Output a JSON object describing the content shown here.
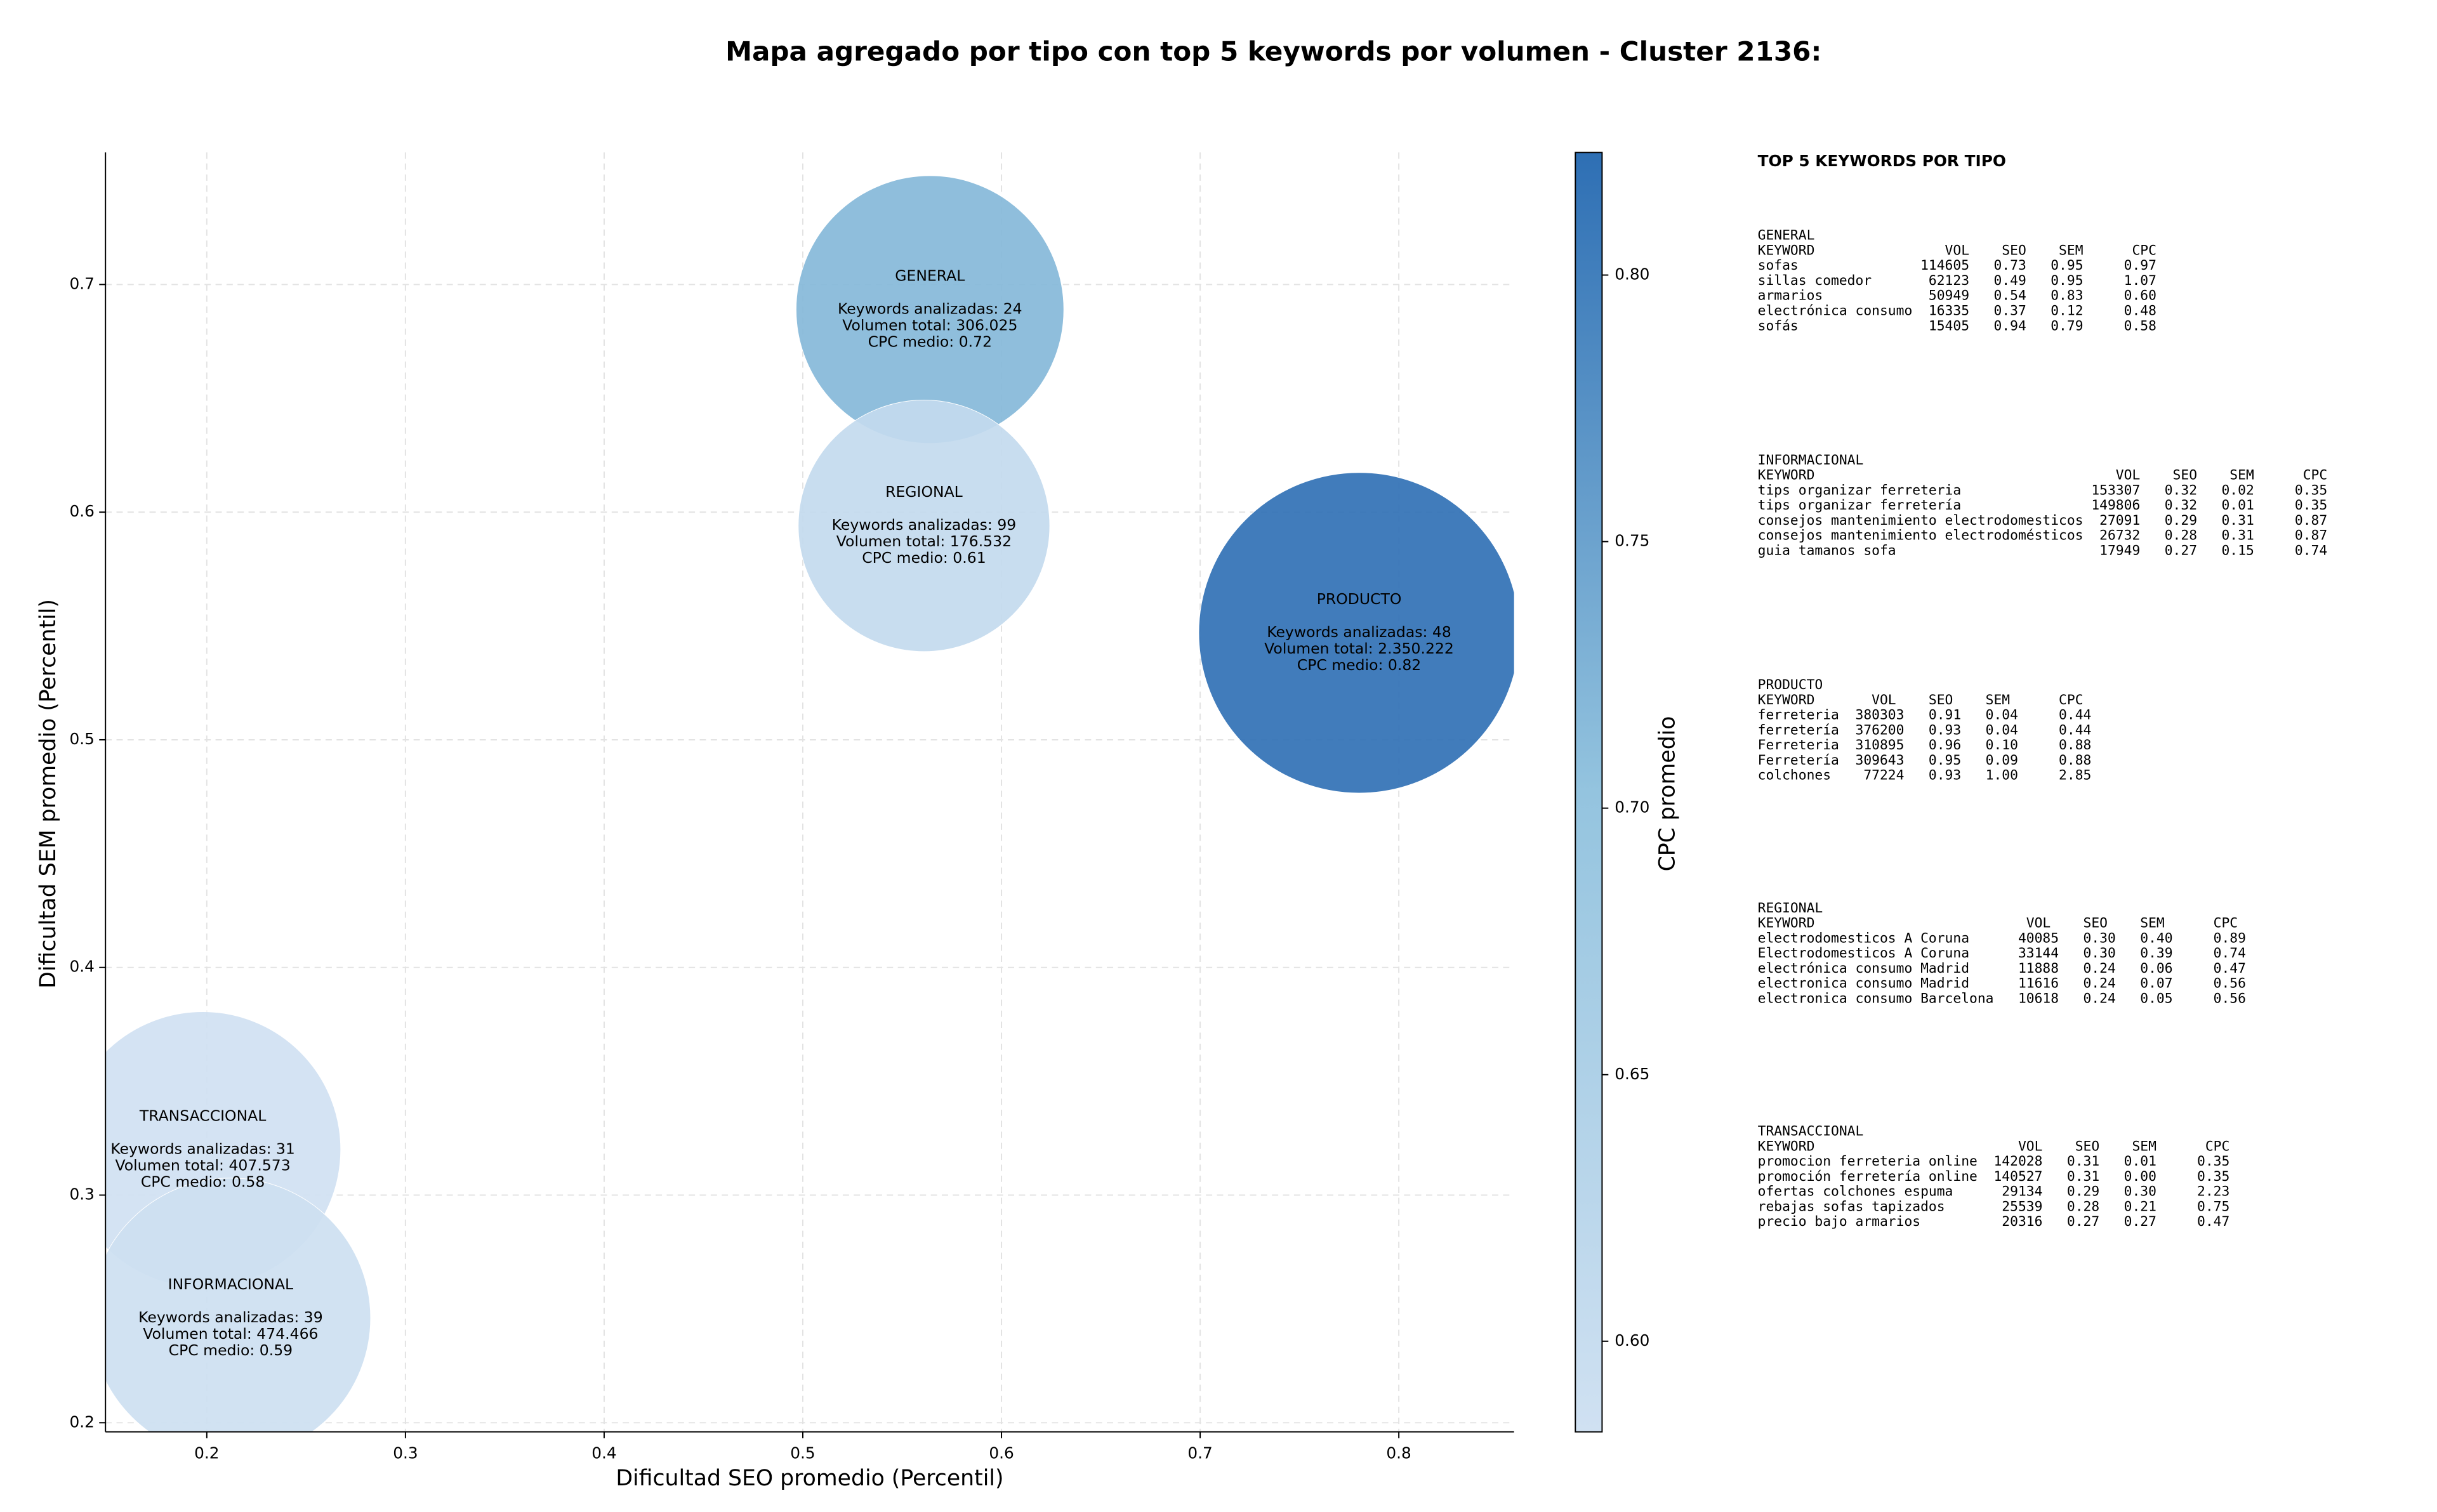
{
  "chart_data": {
    "type": "bubble",
    "title": "Mapa agregado por tipo con top 5 keywords por volumen - Cluster 2136:",
    "x_label": "Dificultad SEO promedio (Percentil)",
    "y_label": "Dificultad SEM promedio (Percentil)",
    "colorbar_label": "CPC promedio",
    "xlim": [
      0.149,
      0.858
    ],
    "ylim": [
      0.196,
      0.758
    ],
    "xticks": [
      0.2,
      0.3,
      0.4,
      0.5,
      0.6,
      0.7,
      0.8
    ],
    "yticks": [
      0.2,
      0.3,
      0.4,
      0.5,
      0.6,
      0.7
    ],
    "clim": [
      0.583,
      0.823
    ],
    "cticks": [
      {
        "value": 0.6,
        "label": "0.60"
      },
      {
        "value": 0.65,
        "label": "0.65"
      },
      {
        "value": 0.7,
        "label": "0.70"
      },
      {
        "value": 0.75,
        "label": "0.75"
      },
      {
        "value": 0.8,
        "label": "0.80"
      }
    ],
    "colormap": [
      "#d0e1f2",
      "#94c4df",
      "#2e6fb4"
    ],
    "grid": true,
    "points": [
      {
        "name": "GENERAL",
        "x": 0.564,
        "y": 0.689,
        "size": 306025,
        "cpc": 0.72,
        "annotation": [
          "Keywords analizadas: 24",
          "Volumen total: 306.025",
          "CPC medio: 0.72"
        ]
      },
      {
        "name": "REGIONAL",
        "x": 0.561,
        "y": 0.594,
        "size": 176532,
        "cpc": 0.61,
        "annotation": [
          "Keywords analizadas: 99",
          "Volumen total: 176.532",
          "CPC medio: 0.61"
        ]
      },
      {
        "name": "PRODUCTO",
        "x": 0.78,
        "y": 0.547,
        "size": 2350222,
        "cpc": 0.82,
        "annotation": [
          "Keywords analizadas: 48",
          "Volumen total: 2.350.222",
          "CPC medio: 0.82"
        ]
      },
      {
        "name": "TRANSACCIONAL",
        "x": 0.198,
        "y": 0.32,
        "size": 407573,
        "cpc": 0.58,
        "annotation": [
          "Keywords analizadas: 31",
          "Volumen total: 407.573",
          "CPC medio: 0.58"
        ]
      },
      {
        "name": "INFORMACIONAL",
        "x": 0.212,
        "y": 0.246,
        "size": 474466,
        "cpc": 0.59,
        "annotation": [
          "Keywords analizadas: 39",
          "Volumen total: 474.466",
          "CPC medio: 0.59"
        ]
      }
    ],
    "panel": {
      "title": "TOP 5 KEYWORDS POR TIPO",
      "blocks": [
        {
          "title": "GENERAL",
          "header": "KEYWORD                VOL    SEO    SEM      CPC",
          "rows": [
            "sofas               114605   0.73   0.95     0.97",
            "sillas comedor       62123   0.49   0.95     1.07",
            "armarios             50949   0.54   0.83     0.60",
            "electrónica consumo  16335   0.37   0.12     0.48",
            "sofás                15405   0.94   0.79     0.58"
          ]
        },
        {
          "title": "INFORMACIONAL",
          "header": "KEYWORD                                     VOL    SEO    SEM      CPC",
          "rows": [
            "tips organizar ferreteria                153307   0.32   0.02     0.35",
            "tips organizar ferretería                149806   0.32   0.01     0.35",
            "consejos mantenimiento electrodomesticos  27091   0.29   0.31     0.87",
            "consejos mantenimiento electrodomésticos  26732   0.28   0.31     0.87",
            "guia tamanos sofa                         17949   0.27   0.15     0.74"
          ]
        },
        {
          "title": "PRODUCTO",
          "header": "KEYWORD       VOL    SEO    SEM      CPC",
          "rows": [
            "ferreteria  380303   0.91   0.04     0.44",
            "ferretería  376200   0.93   0.04     0.44",
            "Ferreteria  310895   0.96   0.10     0.88",
            "Ferretería  309643   0.95   0.09     0.88",
            "colchones    77224   0.93   1.00     2.85"
          ]
        },
        {
          "title": "REGIONAL",
          "header": "KEYWORD                          VOL    SEO    SEM      CPC",
          "rows": [
            "electrodomesticos A Coruna      40085   0.30   0.40     0.89",
            "Electrodomesticos A Coruna      33144   0.30   0.39     0.74",
            "electrónica consumo Madrid      11888   0.24   0.06     0.47",
            "electronica consumo Madrid      11616   0.24   0.07     0.56",
            "electronica consumo Barcelona   10618   0.24   0.05     0.56"
          ]
        },
        {
          "title": "TRANSACCIONAL",
          "header": "KEYWORD                         VOL    SEO    SEM      CPC",
          "rows": [
            "promocion ferreteria online  142028   0.31   0.01     0.35",
            "promoción ferretería online  140527   0.31   0.00     0.35",
            "ofertas colchones espuma      29134   0.29   0.30     2.23",
            "rebajas sofas tapizados       25539   0.28   0.21     0.75",
            "precio bajo armarios          20316   0.27   0.27     0.47"
          ]
        }
      ]
    }
  }
}
